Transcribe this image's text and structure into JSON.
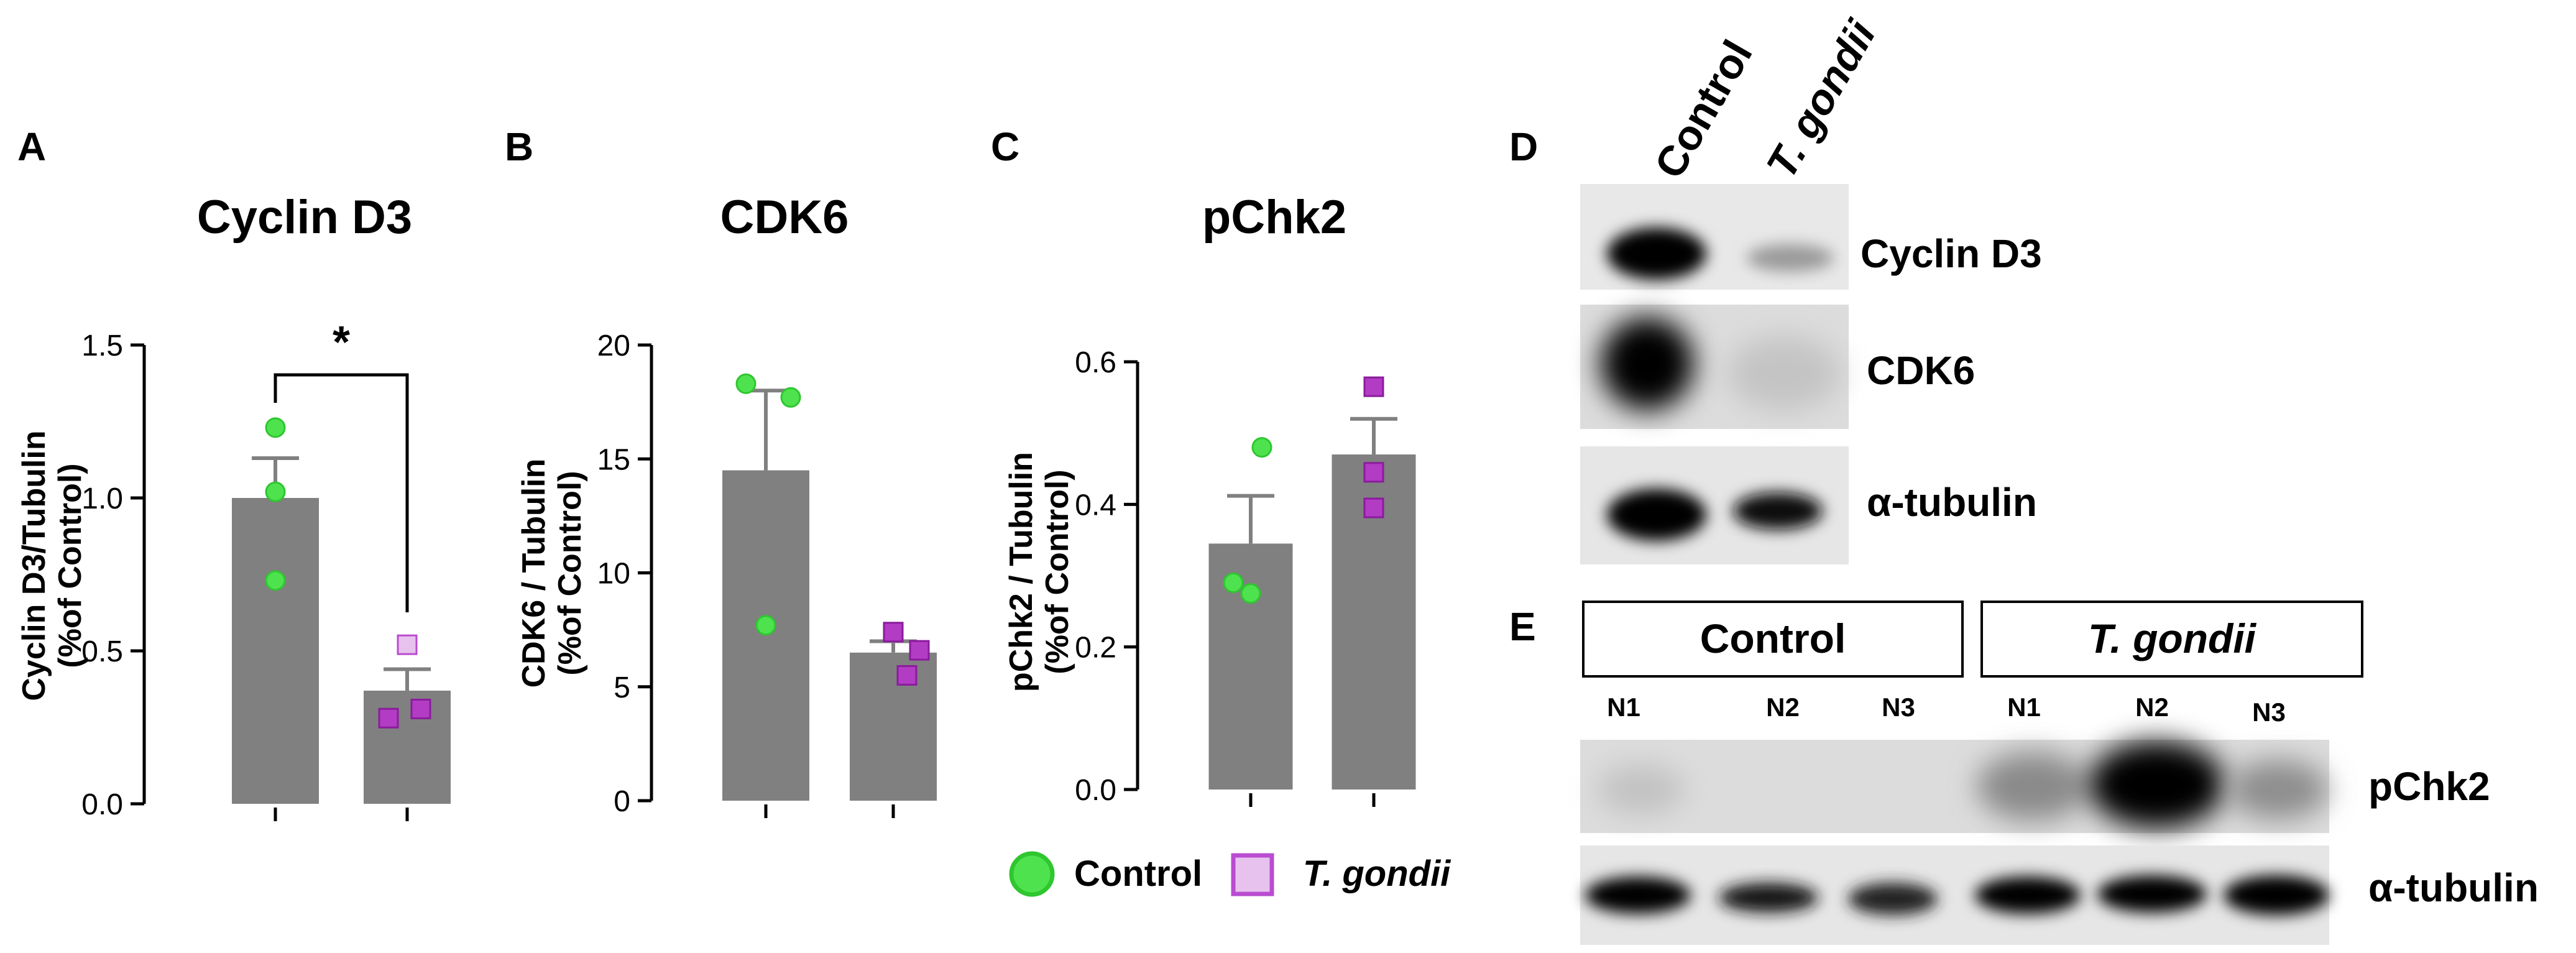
{
  "panels": {
    "A": {
      "letter": "A",
      "title": "Cyclin D3",
      "ylabel_line1": "Cyclin D3/Tubulin",
      "ylabel_line2": "(%of Control)",
      "significance": "*"
    },
    "B": {
      "letter": "B",
      "title": "CDK6",
      "ylabel_line1": "CDK6 / Tubulin",
      "ylabel_line2": "(%of Control)"
    },
    "C": {
      "letter": "C",
      "title": "pChk2",
      "ylabel_line1": "pChk2 / Tubulin",
      "ylabel_line2": "(%of Control)"
    },
    "D": {
      "letter": "D",
      "lane_labels": [
        "Control",
        "T. gondii"
      ],
      "row_labels": [
        "Cyclin D3",
        "CDK6",
        "α-tubulin"
      ]
    },
    "E": {
      "letter": "E",
      "groups": [
        "Control",
        "T. gondii"
      ],
      "lane_labels": [
        "N1",
        "N2",
        "N3",
        "N1",
        "N2",
        "N3"
      ],
      "row_labels": [
        "pChk2",
        "α-tubulin"
      ]
    }
  },
  "legend": {
    "control": "Control",
    "tgondii": "T. gondii"
  },
  "colors": {
    "bar": "#808080",
    "control_fill": "#4ee34e",
    "control_edge": "#2fc62f",
    "tgondii_fill": "#b23cc4",
    "tgondii_edge": "#8a1c9c",
    "tgondii_legend_fill": "#e7c2ee",
    "tgondii_legend_edge": "#b94cd0"
  },
  "chart_data": [
    {
      "type": "bar",
      "title": "Cyclin D3",
      "ylabel": "Cyclin D3/Tubulin (%of Control)",
      "categories": [
        "Control",
        "T. gondii"
      ],
      "values": [
        1.0,
        0.37
      ],
      "sem": [
        0.13,
        0.07
      ],
      "ylim": [
        0,
        1.5
      ],
      "yticks": [
        "0.0",
        "0.5",
        "1.0",
        "1.5"
      ],
      "ytick_values": [
        0,
        0.5,
        1.0,
        1.5
      ],
      "points": [
        [
          0.73,
          1.02,
          1.23
        ],
        [
          0.28,
          0.31,
          0.52
        ]
      ],
      "significance": "*",
      "grid": false
    },
    {
      "type": "bar",
      "title": "CDK6",
      "ylabel": "CDK6 / Tubulin (%of Control)",
      "categories": [
        "Control",
        "T. gondii"
      ],
      "values": [
        14.5,
        6.5
      ],
      "sem": [
        3.5,
        0.5
      ],
      "ylim": [
        0,
        20
      ],
      "yticks": [
        "0",
        "5",
        "10",
        "15",
        "20"
      ],
      "ytick_values": [
        0,
        5,
        10,
        15,
        20
      ],
      "points": [
        [
          7.7,
          17.7,
          18.3
        ],
        [
          5.5,
          6.6,
          7.4
        ]
      ],
      "grid": false
    },
    {
      "type": "bar",
      "title": "pChk2",
      "ylabel": "pChk2 / Tubulin (%of Control)",
      "categories": [
        "Control",
        "T. gondii"
      ],
      "values": [
        0.345,
        0.47
      ],
      "sem": [
        0.067,
        0.05
      ],
      "ylim": [
        0,
        0.6
      ],
      "yticks": [
        "0.0",
        "0.2",
        "0.4",
        "0.6"
      ],
      "ytick_values": [
        0,
        0.2,
        0.4,
        0.6
      ],
      "points": [
        [
          0.275,
          0.29,
          0.48
        ],
        [
          0.395,
          0.445,
          0.565
        ]
      ],
      "grid": false
    }
  ]
}
